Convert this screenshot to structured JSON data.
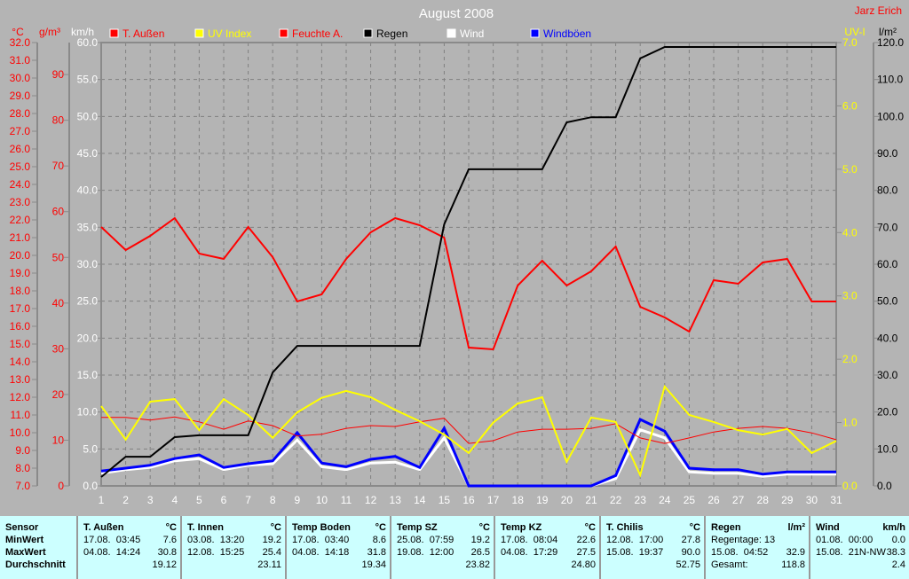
{
  "title": "August 2008",
  "author": "Jarz Erich",
  "chart_data": {
    "type": "line",
    "title": "August 2008",
    "x": [
      1,
      2,
      3,
      4,
      5,
      6,
      7,
      8,
      9,
      10,
      11,
      12,
      13,
      14,
      15,
      16,
      17,
      18,
      19,
      20,
      21,
      22,
      23,
      24,
      25,
      26,
      27,
      28,
      29,
      30,
      31
    ],
    "axes": {
      "temp": {
        "label": "°C",
        "range": [
          7,
          32
        ],
        "step": 1,
        "color": "#ff0000"
      },
      "hum": {
        "label": "g/m³",
        "range": [
          0,
          97
        ],
        "ticks": [
          0,
          10,
          20,
          30,
          40,
          50,
          60,
          70,
          80,
          90
        ],
        "color": "#ff0000"
      },
      "wind": {
        "label": "km/h",
        "range": [
          0,
          60
        ],
        "step": 5,
        "color": "#ffffff"
      },
      "uv": {
        "label": "UV-I",
        "range": [
          0,
          7
        ],
        "step": 1,
        "color": "#ffff00"
      },
      "rain": {
        "label": "l/m²",
        "range": [
          0,
          120
        ],
        "step": 10,
        "color": "#000000"
      }
    },
    "grid": true,
    "legend_position": "top",
    "series": [
      {
        "name": "T. Außen",
        "axis": "temp",
        "color": "#ff0000",
        "width": 2,
        "values": [
          21.6,
          20.3,
          21.1,
          22.1,
          20.1,
          19.8,
          21.6,
          19.9,
          17.4,
          17.8,
          19.8,
          21.3,
          22.1,
          21.7,
          21.0,
          14.8,
          14.7,
          18.3,
          19.7,
          18.3,
          19.1,
          20.5,
          17.1,
          16.5,
          15.7,
          18.6,
          18.4,
          19.6,
          19.8,
          17.4,
          17.4
        ]
      },
      {
        "name": "UV Index",
        "axis": "uv",
        "color": "#ffff00",
        "width": 2,
        "values": [
          1.26,
          0.73,
          1.33,
          1.37,
          0.88,
          1.37,
          1.12,
          0.76,
          1.16,
          1.39,
          1.5,
          1.4,
          1.2,
          1.02,
          0.81,
          0.52,
          1.0,
          1.3,
          1.4,
          0.38,
          1.08,
          1.01,
          0.17,
          1.57,
          1.12,
          1.01,
          0.88,
          0.81,
          0.9,
          0.52,
          0.71
        ]
      },
      {
        "name": "Feuchte A.",
        "axis": "hum",
        "color": "#ff0000",
        "width": 1,
        "values": [
          15.0,
          15.0,
          14.4,
          15.1,
          14.0,
          12.4,
          14.2,
          13.2,
          10.9,
          11.3,
          12.6,
          13.2,
          13.0,
          14.0,
          14.8,
          9.3,
          9.9,
          11.8,
          12.4,
          12.4,
          12.6,
          13.6,
          10.5,
          9.3,
          10.5,
          11.8,
          12.6,
          13.0,
          12.6,
          11.6,
          10.1
        ]
      },
      {
        "name": "Regen",
        "axis": "rain",
        "color": "#000000",
        "width": 2,
        "values": [
          2.4,
          7.9,
          7.9,
          13.2,
          13.7,
          13.7,
          13.7,
          30.7,
          37.9,
          37.9,
          37.9,
          37.9,
          37.9,
          37.9,
          70.8,
          85.7,
          85.7,
          85.7,
          85.7,
          98.4,
          99.8,
          99.8,
          115.7,
          118.8,
          118.8,
          118.8,
          118.8,
          118.8,
          118.8,
          118.8,
          118.8
        ]
      },
      {
        "name": "Wind",
        "axis": "wind",
        "color": "#ffffff",
        "width": 3,
        "values": [
          1.7,
          2.2,
          2.5,
          3.4,
          3.7,
          2.2,
          2.8,
          3.0,
          6.2,
          2.6,
          2.2,
          3.1,
          3.2,
          2.2,
          6.5,
          0,
          0,
          0,
          0,
          0,
          0,
          1.0,
          7.6,
          6.5,
          1.9,
          1.7,
          1.7,
          1.3,
          1.6,
          1.6,
          1.6
        ]
      },
      {
        "name": "Windböen",
        "axis": "wind",
        "color": "#0000ff",
        "width": 3,
        "values": [
          2.0,
          2.4,
          2.8,
          3.7,
          4.2,
          2.5,
          3.0,
          3.4,
          7.2,
          3.1,
          2.6,
          3.6,
          4.0,
          2.5,
          7.8,
          0,
          0,
          0,
          0,
          0,
          0,
          1.4,
          9.0,
          7.4,
          2.4,
          2.2,
          2.2,
          1.6,
          1.9,
          1.9,
          1.9
        ]
      }
    ]
  },
  "table": {
    "row_labels": [
      "Sensor",
      "MinWert",
      "MaxWert",
      "Durchschnitt"
    ],
    "columns": [
      {
        "name": "T. Außen",
        "unit": "°C",
        "min": [
          "17.08.  03:45",
          "7.6"
        ],
        "max": [
          "04.08.  14:24",
          "30.8"
        ],
        "avg": [
          "",
          "19.12"
        ]
      },
      {
        "name": "T. Innen",
        "unit": "°C",
        "min": [
          "03.08.  13:20",
          "19.2"
        ],
        "max": [
          "12.08.  15:25",
          "25.4"
        ],
        "avg": [
          "",
          "23.11"
        ]
      },
      {
        "name": "Temp Boden",
        "unit": "°C",
        "min": [
          "17.08.  03:40",
          "8.6"
        ],
        "max": [
          "04.08.  14:18",
          "31.8"
        ],
        "avg": [
          "",
          "19.34"
        ]
      },
      {
        "name": "Temp SZ",
        "unit": "°C",
        "min": [
          "25.08.  07:59",
          "19.2"
        ],
        "max": [
          "19.08.  12:00",
          "26.5"
        ],
        "avg": [
          "",
          "23.82"
        ]
      },
      {
        "name": "Temp KZ",
        "unit": "°C",
        "min": [
          "17.08.  08:04",
          "22.6"
        ],
        "max": [
          "04.08.  17:29",
          "27.5"
        ],
        "avg": [
          "",
          "24.80"
        ]
      },
      {
        "name": "T. Chilis",
        "unit": "°C",
        "min": [
          "12.08.  17:00",
          "27.8"
        ],
        "max": [
          "15.08.  19:37",
          "90.0"
        ],
        "avg": [
          "",
          "52.75"
        ]
      },
      {
        "name": "Regen",
        "unit": "l/m²",
        "min": [
          "Regentage: 13",
          ""
        ],
        "max": [
          "15.08.  04:52",
          "32.9"
        ],
        "avg": [
          "Gesamt:",
          "118.8"
        ]
      },
      {
        "name": "Wind",
        "unit": "km/h",
        "min": [
          "01.08.  00:00",
          "0.0"
        ],
        "max": [
          "15.08.  21N-NW",
          "38.3"
        ],
        "avg": [
          "",
          "2.4"
        ]
      }
    ]
  }
}
